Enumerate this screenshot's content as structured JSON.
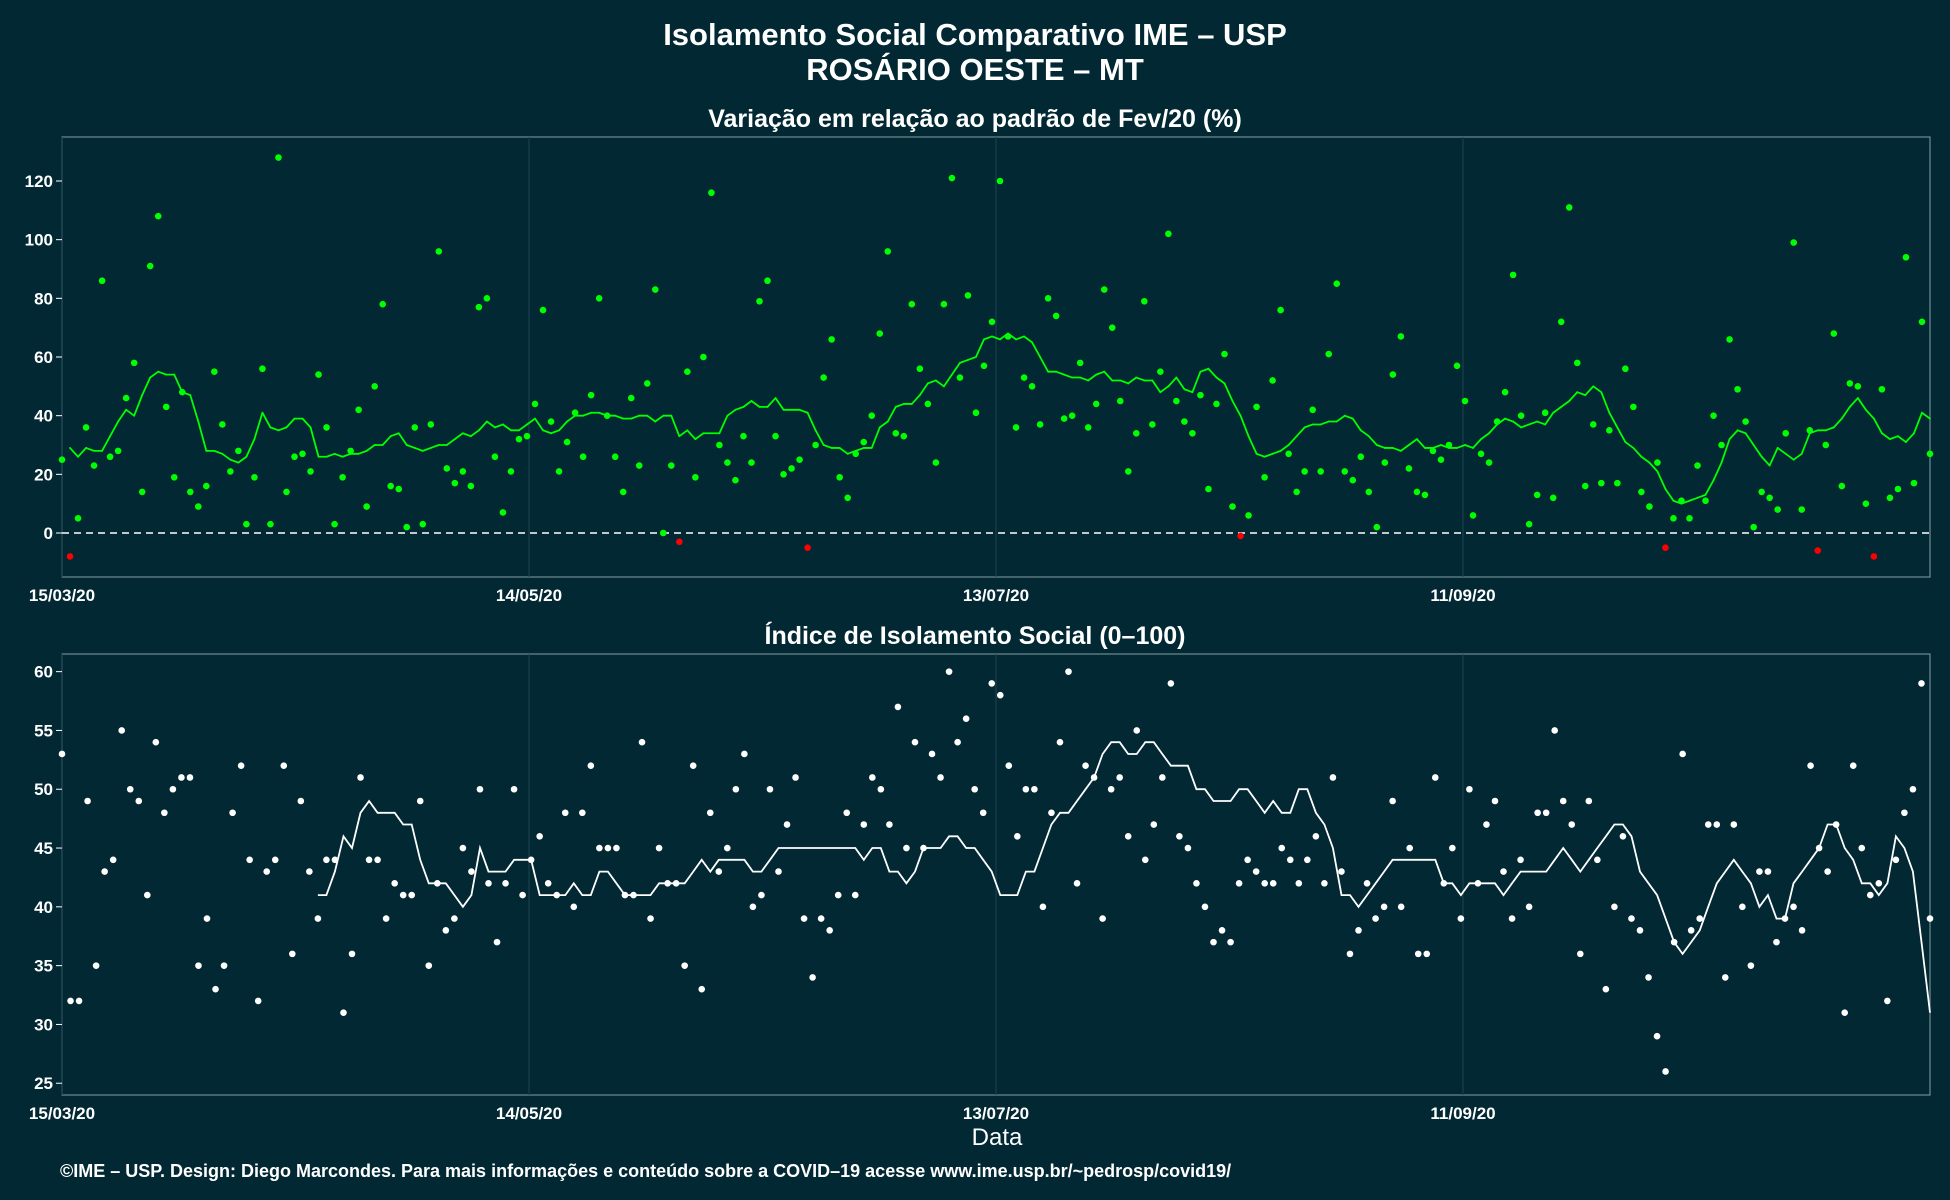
{
  "title_line1": "Isolamento Social Comparativo IME – USP",
  "title_line2": "ROSÁRIO OESTE – MT",
  "xlabel": "Data",
  "caption": "©IME – USP. Design: Diego Marcondes. Para mais informações e conteúdo sobre a COVID–19 acesse www.ime.usp.br/~pedrosp/covid19/",
  "colors": {
    "background": "#022833",
    "panel_border": "#6f8c92",
    "grid": "#1c4550",
    "positive": "#00ff00",
    "negative": "#ff0000",
    "index": "#ffffff"
  },
  "chart_data": [
    {
      "type": "scatter",
      "title": "Variação em relação ao padrão de Fev/20 (%)",
      "x_axis": {
        "start": "2020-03-15",
        "end": "2020-11-10",
        "ticks": [
          "15/03/20",
          "14/05/20",
          "13/07/20",
          "11/09/20"
        ],
        "tick_dates": [
          "2020-03-15",
          "2020-05-14",
          "2020-07-13",
          "2020-09-11"
        ]
      },
      "ylim": [
        -15,
        135
      ],
      "yticks": [
        0,
        20,
        40,
        60,
        80,
        100,
        120
      ],
      "reference_line": 0,
      "series": [
        {
          "kind": "points",
          "values": [
            25,
            -8,
            5,
            36,
            23,
            86,
            26,
            28,
            46,
            58,
            14,
            91,
            108,
            43,
            19,
            48,
            14,
            9,
            16,
            55,
            37,
            21,
            28,
            3,
            19,
            56,
            3,
            128,
            14,
            26,
            27,
            21,
            54,
            36,
            3,
            19,
            28,
            42,
            9,
            50,
            78,
            16,
            15,
            2,
            36,
            3,
            37,
            96,
            22,
            17,
            21,
            16,
            77,
            80,
            26,
            7,
            21,
            32,
            33,
            44,
            76,
            38,
            21,
            31,
            41,
            26,
            47,
            80,
            40,
            26,
            14,
            46,
            23,
            51,
            83,
            0,
            23,
            -3,
            55,
            19,
            60,
            116,
            30,
            24,
            18,
            33,
            24,
            79,
            86,
            33,
            20,
            22,
            25,
            -5,
            30,
            53,
            66,
            19,
            12,
            27,
            31,
            40,
            68,
            96,
            34,
            33,
            78,
            56,
            44,
            24,
            78,
            121,
            53,
            81,
            41,
            57,
            72,
            120,
            67,
            36,
            53,
            50,
            37,
            80,
            74,
            39,
            40,
            58,
            36,
            44,
            83,
            70,
            45,
            21,
            34,
            79,
            37,
            55,
            102,
            45,
            38,
            34,
            47,
            15,
            44,
            61,
            9,
            -1,
            6,
            43,
            19,
            52,
            76,
            27,
            14,
            21,
            42,
            21,
            61,
            85,
            21,
            18,
            26,
            14,
            2,
            24,
            54,
            67,
            22,
            14,
            13,
            28,
            25,
            30,
            57,
            45,
            6,
            27,
            24,
            38,
            48,
            88,
            40,
            3,
            13,
            41,
            12,
            72,
            111,
            58,
            16,
            37,
            17,
            35,
            17,
            56,
            43,
            14,
            9,
            24,
            -5,
            5,
            11,
            5,
            23,
            11,
            40,
            30,
            66,
            49,
            38,
            2,
            14,
            12,
            8,
            34,
            99,
            8,
            35,
            -6,
            30,
            68,
            16,
            51,
            50,
            10,
            -8,
            49,
            12,
            15,
            94,
            17,
            72,
            27
          ]
        },
        {
          "kind": "line",
          "name": "média móvel",
          "values": [
            29,
            26,
            29,
            28,
            28,
            33,
            38,
            42,
            40,
            47,
            53,
            55,
            54,
            54,
            48,
            47,
            38,
            28,
            28,
            27,
            25,
            24,
            26,
            32,
            41,
            36,
            35,
            36,
            39,
            39,
            36,
            26,
            26,
            27,
            26,
            27,
            27,
            28,
            30,
            30,
            33,
            34,
            30,
            29,
            28,
            29,
            30,
            30,
            32,
            34,
            33,
            35,
            38,
            36,
            37,
            35,
            35,
            37,
            39,
            35,
            34,
            35,
            38,
            40,
            40,
            41,
            41,
            40,
            40,
            39,
            39,
            40,
            40,
            38,
            40,
            40,
            33,
            35,
            32,
            34,
            34,
            34,
            40,
            42,
            43,
            45,
            43,
            43,
            46,
            42,
            42,
            42,
            41,
            35,
            30,
            29,
            29,
            27,
            28,
            29,
            29,
            36,
            38,
            43,
            44,
            44,
            47,
            51,
            52,
            50,
            54,
            58,
            59,
            60,
            66,
            67,
            66,
            68,
            66,
            67,
            65,
            60,
            55,
            55,
            54,
            53,
            53,
            52,
            54,
            55,
            52,
            52,
            51,
            53,
            52,
            52,
            48,
            50,
            53,
            49,
            48,
            55,
            56,
            53,
            51,
            45,
            40,
            33,
            27,
            26,
            27,
            28,
            30,
            33,
            36,
            37,
            37,
            38,
            38,
            40,
            39,
            35,
            33,
            30,
            29,
            29,
            28,
            30,
            32,
            29,
            29,
            30,
            29,
            29,
            30,
            29,
            32,
            34,
            37,
            39,
            38,
            36,
            37,
            38,
            37,
            41,
            43,
            45,
            48,
            47,
            50,
            48,
            41,
            36,
            31,
            29,
            26,
            24,
            21,
            15,
            11,
            10,
            11,
            12,
            13,
            18,
            24,
            32,
            35,
            34,
            30,
            26,
            23,
            29,
            27,
            25,
            27,
            34,
            35,
            35,
            36,
            39,
            43,
            46,
            42,
            39,
            34,
            32,
            33,
            31,
            34,
            41,
            39
          ]
        }
      ]
    },
    {
      "type": "scatter",
      "title": "Índice de Isolamento Social (0–100)",
      "x_axis": {
        "start": "2020-03-15",
        "end": "2020-11-10",
        "ticks": [
          "15/03/20",
          "14/05/20",
          "13/07/20",
          "11/09/20"
        ],
        "tick_dates": [
          "2020-03-15",
          "2020-05-14",
          "2020-07-13",
          "2020-09-11"
        ]
      },
      "ylim": [
        24,
        61.5
      ],
      "yticks": [
        25,
        30,
        35,
        40,
        45,
        50,
        55,
        60
      ],
      "series": [
        {
          "kind": "points",
          "values": [
            53,
            32,
            32,
            49,
            35,
            43,
            44,
            55,
            50,
            49,
            41,
            54,
            48,
            50,
            51,
            51,
            35,
            39,
            33,
            35,
            48,
            52,
            44,
            32,
            43,
            44,
            52,
            36,
            49,
            43,
            39,
            44,
            44,
            31,
            36,
            51,
            44,
            44,
            39,
            42,
            41,
            41,
            49,
            35,
            42,
            38,
            39,
            45,
            43,
            50,
            42,
            37,
            42,
            50,
            41,
            44,
            46,
            42,
            41,
            48,
            40,
            48,
            52,
            45,
            45,
            45,
            41,
            41,
            54,
            39,
            45,
            42,
            42,
            35,
            52,
            33,
            48,
            43,
            45,
            50,
            53,
            40,
            41,
            50,
            43,
            47,
            51,
            39,
            34,
            39,
            38,
            41,
            48,
            41,
            47,
            51,
            50,
            47,
            57,
            45,
            54,
            45,
            53,
            51,
            60,
            54,
            56,
            50,
            48,
            59,
            58,
            52,
            46,
            50,
            50,
            40,
            48,
            54,
            60,
            42,
            52,
            51,
            39,
            50,
            51,
            46,
            55,
            44,
            47,
            51,
            59,
            46,
            45,
            42,
            40,
            37,
            38,
            37,
            42,
            44,
            43,
            42,
            42,
            45,
            44,
            42,
            44,
            46,
            42,
            51,
            43,
            36,
            38,
            42,
            39,
            40,
            49,
            40,
            45,
            36,
            36,
            51,
            42,
            45,
            39,
            50,
            42,
            47,
            49,
            43,
            39,
            44,
            40,
            48,
            48,
            55,
            49,
            47,
            36,
            49,
            44,
            33,
            40,
            46,
            39,
            38,
            34,
            29,
            26,
            37,
            53,
            38,
            39,
            47,
            47,
            34,
            47,
            40,
            35,
            43,
            43,
            37,
            39,
            40,
            38,
            52,
            45,
            43,
            47,
            31,
            52,
            45,
            41,
            42,
            32,
            44,
            48,
            50,
            59,
            39
          ]
        },
        {
          "kind": "line",
          "name": "média móvel",
          "values": [
            41,
            41,
            43,
            46,
            45,
            48,
            49,
            48,
            48,
            48,
            47,
            47,
            44,
            42,
            42,
            42,
            41,
            40,
            41,
            45,
            43,
            43,
            43,
            44,
            44,
            44,
            41,
            41,
            41,
            41,
            42,
            41,
            41,
            43,
            43,
            42,
            41,
            41,
            41,
            41,
            42,
            42,
            42,
            42,
            43,
            44,
            43,
            44,
            44,
            44,
            44,
            43,
            43,
            44,
            45,
            45,
            45,
            45,
            45,
            45,
            45,
            45,
            45,
            45,
            44,
            45,
            45,
            43,
            43,
            42,
            43,
            45,
            45,
            45,
            46,
            46,
            45,
            45,
            44,
            43,
            41,
            41,
            41,
            43,
            43,
            45,
            47,
            48,
            48,
            49,
            50,
            51,
            53,
            54,
            54,
            53,
            53,
            54,
            54,
            53,
            52,
            52,
            52,
            50,
            50,
            49,
            49,
            49,
            50,
            50,
            49,
            48,
            49,
            48,
            48,
            50,
            50,
            48,
            47,
            45,
            41,
            41,
            40,
            41,
            42,
            43,
            44,
            44,
            44,
            44,
            44,
            44,
            42,
            42,
            41,
            42,
            42,
            42,
            42,
            41,
            42,
            43,
            43,
            43,
            43,
            44,
            45,
            44,
            43,
            44,
            45,
            46,
            47,
            47,
            46,
            43,
            42,
            41,
            39,
            37,
            36,
            37,
            38,
            40,
            42,
            43,
            44,
            43,
            42,
            40,
            41,
            39,
            39,
            42,
            43,
            44,
            45,
            47,
            47,
            45,
            44,
            42,
            42,
            41,
            42,
            46,
            45,
            43,
            37,
            31
          ]
        }
      ]
    }
  ]
}
